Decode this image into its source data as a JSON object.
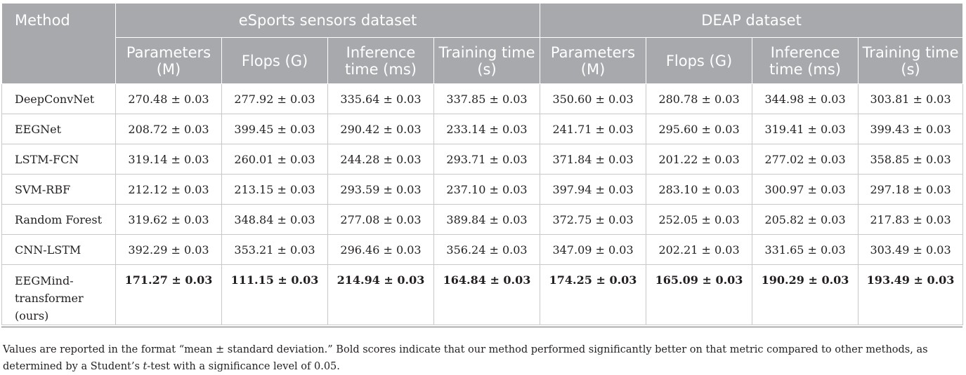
{
  "table": {
    "method_header": "Method",
    "groups": [
      "eSports sensors dataset",
      "DEAP dataset"
    ],
    "columns": [
      "Parameters (M)",
      "Flops (G)",
      "Inference time (ms)",
      "Training time (s)"
    ],
    "rows": [
      {
        "method": "DeepConvNet",
        "values": [
          "270.48 ± 0.03",
          "277.92 ± 0.03",
          "335.64 ± 0.03",
          "337.85 ± 0.03",
          "350.60 ± 0.03",
          "280.78 ± 0.03",
          "344.98 ± 0.03",
          "303.81 ± 0.03"
        ]
      },
      {
        "method": "EEGNet",
        "values": [
          "208.72 ± 0.03",
          "399.45 ± 0.03",
          "290.42 ± 0.03",
          "233.14 ± 0.03",
          "241.71 ± 0.03",
          "295.60 ± 0.03",
          "319.41 ± 0.03",
          "399.43 ± 0.03"
        ]
      },
      {
        "method": "LSTM-FCN",
        "values": [
          "319.14 ± 0.03",
          "260.01 ± 0.03",
          "244.28 ± 0.03",
          "293.71 ± 0.03",
          "371.84 ± 0.03",
          "201.22 ± 0.03",
          "277.02 ± 0.03",
          "358.85 ± 0.03"
        ]
      },
      {
        "method": "SVM-RBF",
        "values": [
          "212.12 ± 0.03",
          "213.15 ± 0.03",
          "293.59 ± 0.03",
          "237.10 ± 0.03",
          "397.94 ± 0.03",
          "283.10 ± 0.03",
          "300.97 ± 0.03",
          "297.18 ± 0.03"
        ]
      },
      {
        "method": "Random Forest",
        "values": [
          "319.62 ± 0.03",
          "348.84 ± 0.03",
          "277.08 ± 0.03",
          "389.84 ± 0.03",
          "372.75 ± 0.03",
          "252.05 ± 0.03",
          "205.82 ± 0.03",
          "217.83 ± 0.03"
        ]
      },
      {
        "method": "CNN-LSTM",
        "values": [
          "392.29 ± 0.03",
          "353.21 ± 0.03",
          "296.46 ± 0.03",
          "356.24 ± 0.03",
          "347.09 ± 0.03",
          "202.21 ± 0.03",
          "331.65 ± 0.03",
          "303.49 ± 0.03"
        ]
      },
      {
        "method": "EEGMind-transformer (ours)",
        "values": [
          "171.27 ± 0.03",
          "111.15 ± 0.03",
          "214.94 ± 0.03",
          "164.84 ± 0.03",
          "174.25 ± 0.03",
          "165.09 ± 0.03",
          "190.29 ± 0.03",
          "193.49 ± 0.03"
        ],
        "bold": true
      }
    ],
    "header_color": "#a7a9ac"
  },
  "footnote": {
    "part1": "Values are reported in the format “mean ± standard deviation.” Bold scores indicate that our method performed significantly better on that metric compared to other methods, as determined by a Student’s ",
    "italic": "t",
    "part2": "-test with a significance level of 0.05."
  }
}
